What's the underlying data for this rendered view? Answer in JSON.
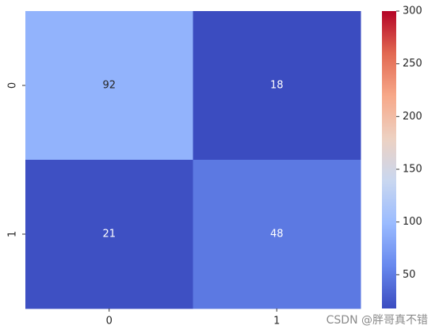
{
  "chart_data": {
    "type": "heatmap",
    "x_categories": [
      "0",
      "1"
    ],
    "y_categories": [
      "0",
      "1"
    ],
    "values": [
      [
        92,
        18
      ],
      [
        21,
        48
      ]
    ],
    "colormap": [
      "#3b4cc0",
      "#6788ee",
      "#9abbff",
      "#c9d7f0",
      "#edd1c2",
      "#f7a889",
      "#e26952",
      "#b40426"
    ],
    "clim": [
      18,
      300
    ],
    "cticks": [
      50,
      100,
      150,
      200,
      250,
      300
    ],
    "watermark": "CSDN @胖哥真不错"
  }
}
